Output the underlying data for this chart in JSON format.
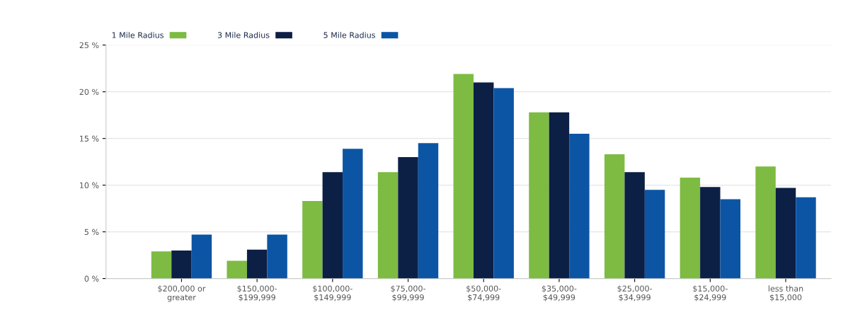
{
  "chart_data": {
    "type": "bar",
    "categories": [
      "$200,000 or\ngreater",
      "$150,000-\n$199,999",
      "$100,000-\n$149,999",
      "$75,000-\n$99,999",
      "$50,000-\n$74,999",
      "$35,000-\n$49,999",
      "$25,000-\n$34,999",
      "$15,000-\n$24,999",
      "less than\n$15,000"
    ],
    "series": [
      {
        "name": "1 Mile Radius",
        "color": "#7dbb42",
        "values": [
          2.9,
          1.9,
          8.3,
          11.4,
          21.9,
          17.8,
          13.3,
          10.8,
          12.0
        ]
      },
      {
        "name": "3 Mile Radius",
        "color": "#0c1f45",
        "values": [
          3.0,
          3.1,
          11.4,
          13.0,
          21.0,
          17.8,
          11.4,
          9.8,
          9.7
        ]
      },
      {
        "name": "5 Mile Radius",
        "color": "#0c55a5",
        "values": [
          4.7,
          4.7,
          13.9,
          14.5,
          20.4,
          15.5,
          9.5,
          8.5,
          8.7
        ]
      }
    ],
    "ylim": [
      0,
      25
    ],
    "yticks": [
      {
        "value": 0,
        "label": "0 %"
      },
      {
        "value": 5,
        "label": "5 %"
      },
      {
        "value": 10,
        "label": "10 %"
      },
      {
        "value": 15,
        "label": "15 %"
      },
      {
        "value": 20,
        "label": "20 %"
      },
      {
        "value": 25,
        "label": "25 %"
      }
    ],
    "grid": "y",
    "legend": "top left"
  }
}
